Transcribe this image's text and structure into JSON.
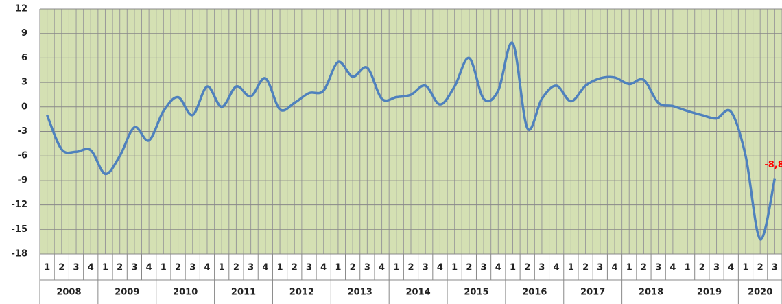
{
  "chart_data": {
    "type": "line",
    "categories": [
      {
        "year": "2008",
        "quarter": "1"
      },
      {
        "year": "2008",
        "quarter": "2"
      },
      {
        "year": "2008",
        "quarter": "3"
      },
      {
        "year": "2008",
        "quarter": "4"
      },
      {
        "year": "2009",
        "quarter": "1"
      },
      {
        "year": "2009",
        "quarter": "2"
      },
      {
        "year": "2009",
        "quarter": "3"
      },
      {
        "year": "2009",
        "quarter": "4"
      },
      {
        "year": "2010",
        "quarter": "1"
      },
      {
        "year": "2010",
        "quarter": "2"
      },
      {
        "year": "2010",
        "quarter": "3"
      },
      {
        "year": "2010",
        "quarter": "4"
      },
      {
        "year": "2011",
        "quarter": "1"
      },
      {
        "year": "2011",
        "quarter": "2"
      },
      {
        "year": "2011",
        "quarter": "3"
      },
      {
        "year": "2011",
        "quarter": "4"
      },
      {
        "year": "2012",
        "quarter": "1"
      },
      {
        "year": "2012",
        "quarter": "2"
      },
      {
        "year": "2012",
        "quarter": "3"
      },
      {
        "year": "2012",
        "quarter": "4"
      },
      {
        "year": "2013",
        "quarter": "1"
      },
      {
        "year": "2013",
        "quarter": "2"
      },
      {
        "year": "2013",
        "quarter": "3"
      },
      {
        "year": "2013",
        "quarter": "4"
      },
      {
        "year": "2014",
        "quarter": "1"
      },
      {
        "year": "2014",
        "quarter": "2"
      },
      {
        "year": "2014",
        "quarter": "3"
      },
      {
        "year": "2014",
        "quarter": "4"
      },
      {
        "year": "2015",
        "quarter": "1"
      },
      {
        "year": "2015",
        "quarter": "2"
      },
      {
        "year": "2015",
        "quarter": "3"
      },
      {
        "year": "2015",
        "quarter": "4"
      },
      {
        "year": "2016",
        "quarter": "1"
      },
      {
        "year": "2016",
        "quarter": "2"
      },
      {
        "year": "2016",
        "quarter": "3"
      },
      {
        "year": "2016",
        "quarter": "4"
      },
      {
        "year": "2017",
        "quarter": "1"
      },
      {
        "year": "2017",
        "quarter": "2"
      },
      {
        "year": "2017",
        "quarter": "3"
      },
      {
        "year": "2017",
        "quarter": "4"
      },
      {
        "year": "2018",
        "quarter": "1"
      },
      {
        "year": "2018",
        "quarter": "2"
      },
      {
        "year": "2018",
        "quarter": "3"
      },
      {
        "year": "2018",
        "quarter": "4"
      },
      {
        "year": "2019",
        "quarter": "1"
      },
      {
        "year": "2019",
        "quarter": "2"
      },
      {
        "year": "2019",
        "quarter": "3"
      },
      {
        "year": "2019",
        "quarter": "4"
      },
      {
        "year": "2020",
        "quarter": "1"
      },
      {
        "year": "2020",
        "quarter": "2"
      },
      {
        "year": "2020",
        "quarter": "3"
      }
    ],
    "series": [
      {
        "color": "#4f81bd",
        "values": [
          -1,
          -5.2,
          -5.5,
          -5.3,
          -8.2,
          -6,
          -2.5,
          -4.1,
          -0.5,
          1.2,
          -1,
          2.5,
          0,
          2.5,
          1.3,
          3.5,
          -0.3,
          0.5,
          1.7,
          2,
          5.5,
          3.7,
          4.8,
          1,
          1.2,
          1.5,
          2.6,
          0.3,
          2.5,
          6,
          1,
          2,
          7.8,
          -2.6,
          1,
          2.6,
          0.7,
          2.6,
          3.5,
          3.6,
          2.8,
          3.3,
          0.5,
          0.1,
          -0.5,
          -1,
          -1.4,
          -0.6,
          -6,
          -16.2,
          -8.8
        ],
        "value_labels": [
          null,
          null,
          null,
          null,
          null,
          null,
          null,
          null,
          null,
          null,
          null,
          null,
          null,
          null,
          null,
          null,
          null,
          null,
          null,
          null,
          null,
          null,
          null,
          null,
          null,
          null,
          null,
          null,
          null,
          null,
          null,
          null,
          null,
          null,
          null,
          null,
          null,
          null,
          null,
          null,
          null,
          null,
          null,
          null,
          null,
          null,
          null,
          null,
          null,
          null,
          "-8,8"
        ],
        "label_color": "#ff0000"
      }
    ],
    "ylim": [
      -18,
      12
    ],
    "yticks": [
      -18,
      -15,
      -12,
      -9,
      -6,
      -3,
      0,
      3,
      6,
      9,
      12
    ],
    "grid": true,
    "plot_color": "#d4e0b3"
  }
}
